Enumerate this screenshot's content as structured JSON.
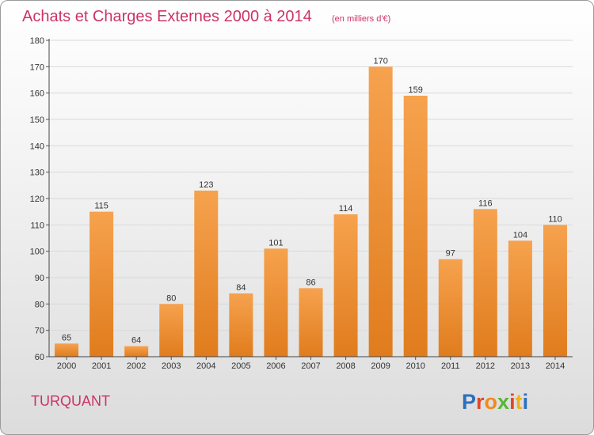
{
  "header": {
    "title": "Achats et Charges Externes 2000 à 2014",
    "subtitle": "(en milliers d'€)"
  },
  "footer": {
    "commune": "TURQUANT",
    "logo": "Proxiti"
  },
  "colors": {
    "title": "#cc3366",
    "bar_top": "#f6a24e",
    "bar_bottom": "#e07c1d",
    "grid": "#d9d9d9",
    "logo_letters": [
      "#2d6fbd",
      "#e0472a",
      "#f08a1c",
      "#59b53a",
      "#e0472a",
      "#f0b21c",
      "#2d6fbd"
    ]
  },
  "chart_data": {
    "type": "bar",
    "title": "Achats et Charges Externes 2000 à 2014",
    "subtitle": "(en milliers d'€)",
    "categories": [
      "2000",
      "2001",
      "2002",
      "2003",
      "2004",
      "2005",
      "2006",
      "2007",
      "2008",
      "2009",
      "2010",
      "2011",
      "2012",
      "2013",
      "2014"
    ],
    "values": [
      65,
      115,
      64,
      80,
      123,
      84,
      101,
      86,
      114,
      170,
      159,
      97,
      116,
      104,
      110
    ],
    "ylim": [
      60,
      180
    ],
    "yticks": [
      60,
      70,
      80,
      90,
      100,
      110,
      120,
      130,
      140,
      150,
      160,
      170,
      180
    ],
    "grid": true,
    "legend": "none"
  }
}
